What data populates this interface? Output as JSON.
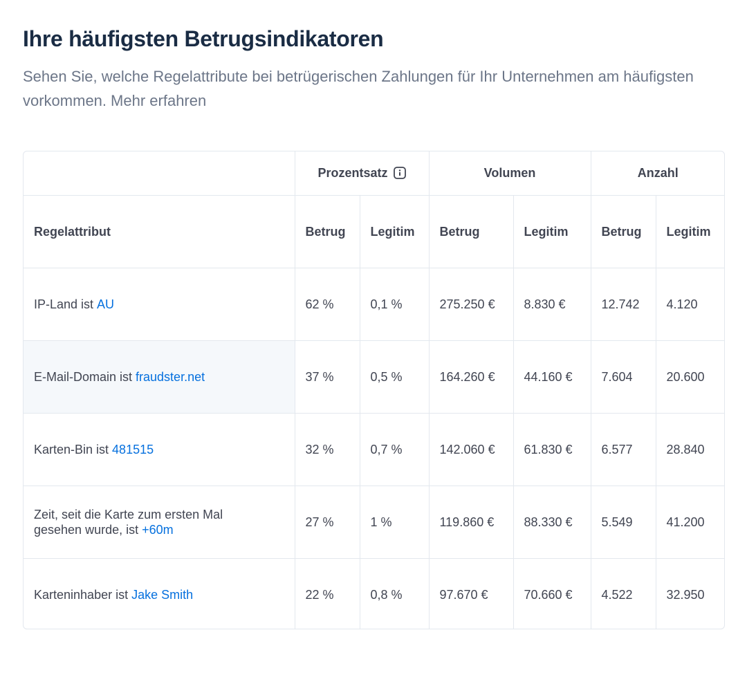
{
  "header": {
    "title": "Ihre häufigsten Betrugsindikatoren",
    "subtitle": "Sehen Sie, welche Regelattribute bei betrügerischen Zahlungen für Ihr Unternehmen am häufigsten vorkommen.",
    "link": "Mehr erfahren"
  },
  "table": {
    "groups": [
      "Prozentsatz",
      "Volumen",
      "Anzahl"
    ],
    "columns": [
      "Regelattribut",
      "Betrug",
      "Legitim",
      "Betrug",
      "Legitim",
      "Betrug",
      "Legitim"
    ],
    "rows": [
      {
        "attribute": "IP-Land ist",
        "value": "AU",
        "cells": [
          "62 %",
          "0,1 %",
          "275.250 €",
          "8.830 €",
          "12.742",
          "4.120"
        ]
      },
      {
        "attribute": "E-Mail-Domain ist",
        "value": "fraudster.net",
        "cells": [
          "37 %",
          "0,5 %",
          "164.260 €",
          "44.160 €",
          "7.604",
          "20.600"
        ]
      },
      {
        "attribute": "Karten-Bin ist",
        "value": "481515",
        "cells": [
          "32 %",
          "0,7 %",
          "142.060 €",
          "61.830 €",
          "6.577",
          "28.840"
        ]
      },
      {
        "attribute": "Zeit, seit die Karte zum ersten Mal gesehen wurde, ist",
        "value": "+60m",
        "cells": [
          "27 %",
          "1 %",
          "119.860 €",
          "88.330 €",
          "5.549",
          "41.200"
        ]
      },
      {
        "attribute": "Karteninhaber ist",
        "value": "Jake Smith",
        "cells": [
          "22 %",
          "0,8 %",
          "97.670 €",
          "70.660 €",
          "4.522",
          "32.950"
        ]
      }
    ]
  }
}
